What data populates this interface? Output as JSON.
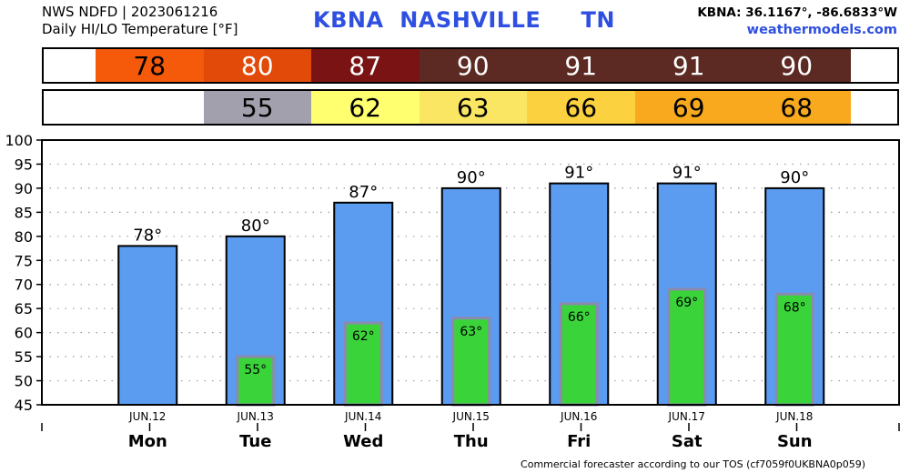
{
  "header": {
    "line1": "NWS NDFD | 2023061216",
    "line2": "Daily HI/LO Temperature [°F]",
    "station_title": "KBNA  NASHVILLE     TN",
    "coords": "KBNA: 36.1167°, -86.6833°W",
    "site": "weathermodels.com"
  },
  "footer": "Commercial forecaster according to our TOS (cf7059f0UKBNA0p059)",
  "colors": {
    "hi_bar": "#5b9cf0",
    "lo_bar": "#3ad43a",
    "lo_bar_border": "#8a8ab0",
    "hi_cells": [
      "#f55a0a",
      "#e24a0a",
      "#7a1414",
      "#5c2a22",
      "#5c2a22",
      "#5c2a22",
      "#5c2a22"
    ],
    "lo_cells": [
      null,
      "#a3a0ae",
      "#ffff70",
      "#fbe664",
      "#fbd140",
      "#f8a91e",
      "#f8a91e"
    ],
    "hi_text": [
      "#000000",
      "#ffffff",
      "#ffffff",
      "#ffffff",
      "#ffffff",
      "#ffffff",
      "#ffffff"
    ]
  },
  "chart_data": {
    "type": "bar",
    "categories": [
      "Mon",
      "Tue",
      "Wed",
      "Thu",
      "Fri",
      "Sat",
      "Sun"
    ],
    "dates": [
      "JUN.12",
      "JUN.13",
      "JUN.14",
      "JUN.15",
      "JUN.16",
      "JUN.17",
      "JUN.18"
    ],
    "series": [
      {
        "name": "HI",
        "values": [
          78,
          80,
          87,
          90,
          91,
          91,
          90
        ]
      },
      {
        "name": "LO",
        "values": [
          null,
          55,
          62,
          63,
          66,
          69,
          68
        ]
      }
    ],
    "hi_labels": [
      "78°",
      "80°",
      "87°",
      "90°",
      "91°",
      "91°",
      "90°"
    ],
    "lo_labels": [
      "",
      "55°",
      "62°",
      "63°",
      "66°",
      "69°",
      "68°"
    ],
    "hi_band": [
      "78",
      "80",
      "87",
      "90",
      "91",
      "91",
      "90"
    ],
    "lo_band": [
      "",
      "55",
      "62",
      "63",
      "66",
      "69",
      "68"
    ],
    "ylim": [
      45,
      100
    ],
    "yticks": [
      "100",
      "95",
      "90",
      "85",
      "80",
      "75",
      "70",
      "65",
      "60",
      "55",
      "50",
      "45"
    ],
    "grid": true
  }
}
